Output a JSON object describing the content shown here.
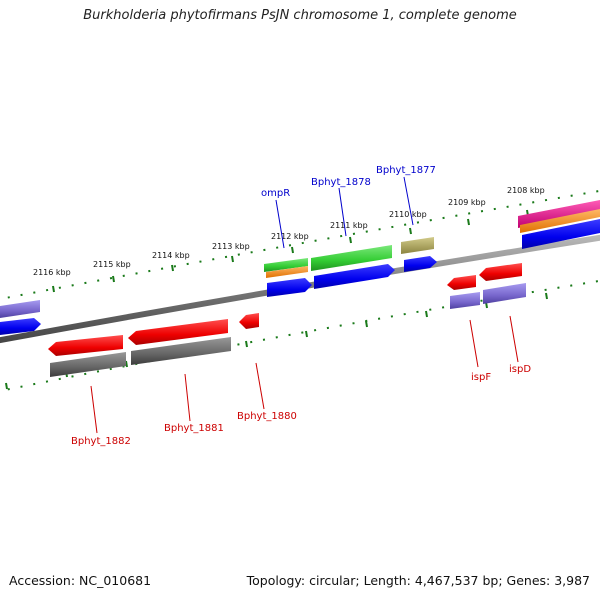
{
  "title": "Burkholderia phytofirmans PsJN chromosome 1, complete genome",
  "footer": {
    "accession": "Accession: NC_010681",
    "summary": "Topology: circular; Length: 4,467,537 bp; Genes: 3,987"
  },
  "scale_labels": [
    "2116 kbp",
    "2115 kbp",
    "2114 kbp",
    "2113 kbp",
    "2112 kbp",
    "2111 kbp",
    "2110 kbp",
    "2109 kbp",
    "2108 kbp"
  ],
  "gene_labels": {
    "ompR": "ompR",
    "Bphyt_1878": "Bphyt_1878",
    "Bphyt_1877": "Bphyt_1877",
    "Bphyt_1882": "Bphyt_1882",
    "Bphyt_1881": "Bphyt_1881",
    "Bphyt_1880": "Bphyt_1880",
    "ispF": "ispF",
    "ispD": "ispD"
  },
  "colors": {
    "forward_label": "#0000cc",
    "reverse_label": "#cc0000",
    "tick": "#1a7a1a",
    "cds_blue": "#0000ee",
    "gene_red": "#ee0000",
    "gray": "#666666",
    "purple": "#7766cc",
    "green": "#33cc33",
    "orange": "#ff8800",
    "olive": "#aaa055",
    "magenta": "#ee1188"
  }
}
